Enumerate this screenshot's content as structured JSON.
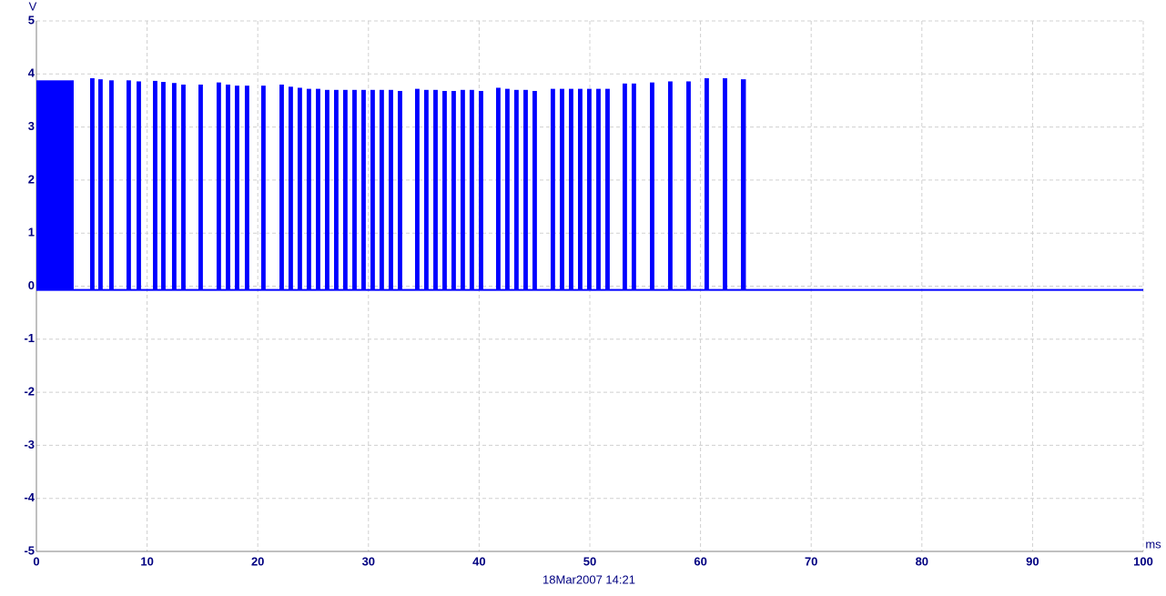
{
  "chart_data": {
    "type": "waveform",
    "y_label": "V",
    "x_label": "ms",
    "footer": "18Mar2007  14:21",
    "color": "#0000ff",
    "grid": true,
    "xlim": [
      0,
      100
    ],
    "xticks": [
      0,
      10,
      20,
      30,
      40,
      50,
      60,
      70,
      80,
      90,
      100
    ],
    "ylim": [
      -5,
      5
    ],
    "yticks": [
      -5,
      -4,
      -3,
      -2,
      -1,
      0,
      1,
      2,
      3,
      4,
      5
    ],
    "baseline_level": -0.07,
    "bursts": {
      "start": [
        0,
        4.85,
        5.59,
        6.58,
        8.14,
        9.05,
        10.53,
        11.27,
        12.25,
        13.08,
        14.64,
        16.28,
        17.11,
        17.93,
        18.83,
        20.31,
        21.96,
        22.78,
        23.6,
        24.42,
        25.25,
        26.07,
        26.89,
        27.71,
        28.54,
        29.36,
        30.18,
        31.0,
        31.83,
        32.65,
        34.21,
        35.03,
        35.86,
        36.68,
        37.5,
        38.32,
        39.14,
        39.97,
        41.53,
        42.35,
        43.17,
        44.0,
        44.82,
        46.46,
        47.29,
        48.11,
        48.93,
        49.75,
        50.58,
        51.4,
        52.96,
        53.78,
        55.43,
        57.07,
        58.72,
        60.36,
        62.01,
        63.65
      ],
      "end": [
        3.37,
        5.25,
        5.99,
        6.98,
        8.54,
        9.45,
        10.93,
        11.67,
        12.65,
        13.48,
        15.04,
        16.68,
        17.51,
        18.33,
        19.23,
        20.71,
        22.36,
        23.18,
        24.0,
        24.82,
        25.65,
        26.47,
        27.29,
        28.11,
        28.94,
        29.76,
        30.58,
        31.4,
        32.23,
        33.05,
        34.61,
        35.43,
        36.26,
        37.08,
        37.9,
        38.72,
        39.54,
        40.37,
        41.93,
        42.75,
        43.57,
        44.4,
        45.22,
        46.86,
        47.69,
        48.51,
        49.33,
        50.15,
        50.98,
        51.8,
        53.36,
        54.18,
        55.83,
        57.47,
        59.12,
        60.76,
        62.41,
        64.1
      ],
      "peak": [
        3.88,
        3.92,
        3.9,
        3.88,
        3.88,
        3.86,
        3.87,
        3.85,
        3.83,
        3.8,
        3.8,
        3.84,
        3.8,
        3.78,
        3.78,
        3.78,
        3.8,
        3.76,
        3.74,
        3.72,
        3.72,
        3.7,
        3.7,
        3.7,
        3.7,
        3.7,
        3.7,
        3.7,
        3.7,
        3.68,
        3.72,
        3.7,
        3.7,
        3.68,
        3.68,
        3.7,
        3.7,
        3.68,
        3.74,
        3.72,
        3.7,
        3.7,
        3.68,
        3.72,
        3.72,
        3.72,
        3.72,
        3.72,
        3.72,
        3.72,
        3.82,
        3.82,
        3.84,
        3.86,
        3.86,
        3.92,
        3.92,
        3.9
      ]
    }
  }
}
